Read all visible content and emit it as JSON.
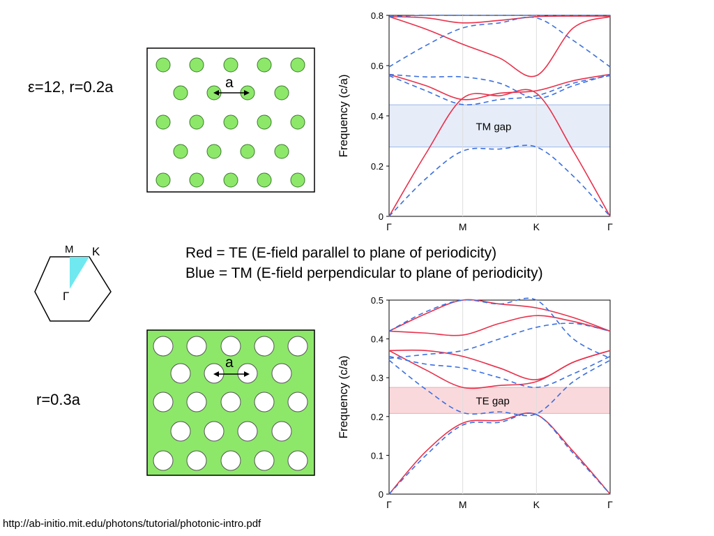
{
  "top_label": "ε=12, r=0.2a",
  "bottom_label": "r=0.3a",
  "legend": {
    "line1": "Red = TE (E-field parallel to plane of periodicity)",
    "line2": "Blue = TM (E-field perpendicular to plane of periodicity)"
  },
  "footer_url": "http://ab-initio.mit.edu/photons/tutorial/photonic-intro.pdf",
  "lattice_label": "a",
  "bz": {
    "M": "M",
    "K": "K",
    "G": "Γ"
  },
  "colors": {
    "te": "#e8304a",
    "tm": "#3a6fe0",
    "rod": "#8de86a",
    "tm_gap": "#e6ecf8",
    "te_gap": "#fad9dc",
    "wedge": "#6fe8f0"
  },
  "chart_data": [
    {
      "type": "line",
      "xlabel": "",
      "ylabel": "Frequency  (c/a)",
      "ylim": [
        0,
        0.8
      ],
      "yticks": [
        "0",
        "0.2",
        "0.4",
        "0.6",
        "0.8"
      ],
      "yticks_values": [
        0,
        0.2,
        0.4,
        0.6,
        0.8
      ],
      "categories": [
        "Γ",
        "M",
        "K",
        "Γ"
      ],
      "x": [
        0,
        1,
        2,
        3
      ],
      "gap": {
        "label": "TM gap",
        "range": [
          0.276,
          0.444
        ]
      },
      "series": [
        {
          "polarization": "TE",
          "style": "solid",
          "x": [
            0,
            0.5,
            1,
            1.5,
            2,
            2.5,
            3
          ],
          "values": [
            0,
            0.25,
            0.47,
            0.48,
            0.49,
            0.26,
            0
          ]
        },
        {
          "polarization": "TE",
          "style": "solid",
          "x": [
            0,
            0.5,
            1,
            1.5,
            2,
            2.5,
            3
          ],
          "values": [
            0.565,
            0.52,
            0.465,
            0.49,
            0.5,
            0.54,
            0.565
          ]
        },
        {
          "polarization": "TE",
          "style": "solid",
          "x": [
            0,
            0.5,
            1,
            1.5,
            2,
            2.5,
            3
          ],
          "values": [
            0.795,
            0.745,
            0.685,
            0.63,
            0.56,
            0.75,
            0.795
          ]
        },
        {
          "polarization": "TE",
          "style": "solid",
          "x": [
            0,
            0.5,
            1,
            1.5,
            2,
            2.5,
            3
          ],
          "values": [
            0.795,
            0.79,
            0.77,
            0.78,
            0.795,
            0.797,
            0.797
          ]
        },
        {
          "polarization": "TM",
          "style": "dashed",
          "x": [
            0,
            0.5,
            1,
            1.5,
            2,
            2.5,
            3
          ],
          "values": [
            0,
            0.15,
            0.26,
            0.268,
            0.276,
            0.16,
            0
          ]
        },
        {
          "polarization": "TM",
          "style": "dashed",
          "x": [
            0,
            0.5,
            1,
            1.5,
            2,
            2.5,
            3
          ],
          "values": [
            0.56,
            0.5,
            0.445,
            0.465,
            0.48,
            0.53,
            0.56
          ]
        },
        {
          "polarization": "TM",
          "style": "dashed",
          "x": [
            0,
            0.5,
            1,
            1.5,
            2,
            2.5,
            3
          ],
          "values": [
            0.565,
            0.555,
            0.555,
            0.53,
            0.47,
            0.52,
            0.565
          ]
        },
        {
          "polarization": "TM",
          "style": "dashed",
          "x": [
            0,
            0.5,
            1,
            1.5,
            2,
            2.5,
            3
          ],
          "values": [
            0.595,
            0.68,
            0.75,
            0.77,
            0.79,
            0.7,
            0.595
          ]
        },
        {
          "polarization": "TM",
          "style": "dashed",
          "x": [
            0,
            0.5,
            1,
            1.5,
            2,
            2.5,
            3
          ],
          "values": [
            0.795,
            0.8,
            0.8,
            0.8,
            0.8,
            0.8,
            0.8
          ]
        }
      ]
    },
    {
      "type": "line",
      "xlabel": "",
      "ylabel": "Frequency  (c/a)",
      "ylim": [
        0,
        0.5
      ],
      "yticks": [
        "0",
        "0.1",
        "0.2",
        "0.3",
        "0.4",
        "0.5"
      ],
      "yticks_values": [
        0,
        0.1,
        0.2,
        0.3,
        0.4,
        0.5
      ],
      "categories": [
        "Γ",
        "M",
        "K",
        "Γ"
      ],
      "x": [
        0,
        1,
        2,
        3
      ],
      "gap": {
        "label": "TE gap",
        "range": [
          0.208,
          0.275
        ]
      },
      "series": [
        {
          "polarization": "TE",
          "style": "solid",
          "x": [
            0,
            0.5,
            1,
            1.5,
            2,
            2.5,
            3
          ],
          "values": [
            0,
            0.11,
            0.183,
            0.19,
            0.205,
            0.11,
            0
          ]
        },
        {
          "polarization": "TE",
          "style": "solid",
          "x": [
            0,
            0.5,
            1,
            1.5,
            2,
            2.5,
            3
          ],
          "values": [
            0.37,
            0.32,
            0.275,
            0.28,
            0.29,
            0.34,
            0.37
          ]
        },
        {
          "polarization": "TE",
          "style": "solid",
          "x": [
            0,
            0.5,
            1,
            1.5,
            2,
            2.5,
            3
          ],
          "values": [
            0.37,
            0.37,
            0.355,
            0.325,
            0.295,
            0.34,
            0.37
          ]
        },
        {
          "polarization": "TE",
          "style": "solid",
          "x": [
            0,
            0.5,
            1,
            1.5,
            2,
            2.5,
            3
          ],
          "values": [
            0.42,
            0.415,
            0.41,
            0.44,
            0.46,
            0.445,
            0.42
          ]
        },
        {
          "polarization": "TE",
          "style": "solid",
          "x": [
            0,
            0.5,
            1,
            1.5,
            2,
            2.5,
            3
          ],
          "values": [
            0.42,
            0.465,
            0.5,
            0.49,
            0.48,
            0.455,
            0.42
          ]
        },
        {
          "polarization": "TM",
          "style": "dashed",
          "x": [
            0,
            0.5,
            1,
            1.5,
            2,
            2.5,
            3
          ],
          "values": [
            0,
            0.1,
            0.178,
            0.185,
            0.205,
            0.105,
            0
          ]
        },
        {
          "polarization": "TM",
          "style": "dashed",
          "x": [
            0,
            0.5,
            1,
            1.5,
            2,
            2.5,
            3
          ],
          "values": [
            0.345,
            0.27,
            0.21,
            0.212,
            0.207,
            0.29,
            0.345
          ]
        },
        {
          "polarization": "TM",
          "style": "dashed",
          "x": [
            0,
            0.5,
            1,
            1.5,
            2,
            2.5,
            3
          ],
          "values": [
            0.35,
            0.36,
            0.37,
            0.4,
            0.43,
            0.44,
            0.42
          ]
        },
        {
          "polarization": "TM",
          "style": "dashed",
          "x": [
            0,
            0.5,
            1,
            1.5,
            2,
            2.5,
            3
          ],
          "values": [
            0.355,
            0.335,
            0.325,
            0.3,
            0.275,
            0.31,
            0.355
          ]
        },
        {
          "polarization": "TM",
          "style": "dashed",
          "x": [
            0,
            0.5,
            1,
            1.5,
            2,
            2.5,
            3
          ],
          "values": [
            0.42,
            0.47,
            0.5,
            0.49,
            0.5,
            0.4,
            0.35
          ]
        }
      ]
    }
  ]
}
